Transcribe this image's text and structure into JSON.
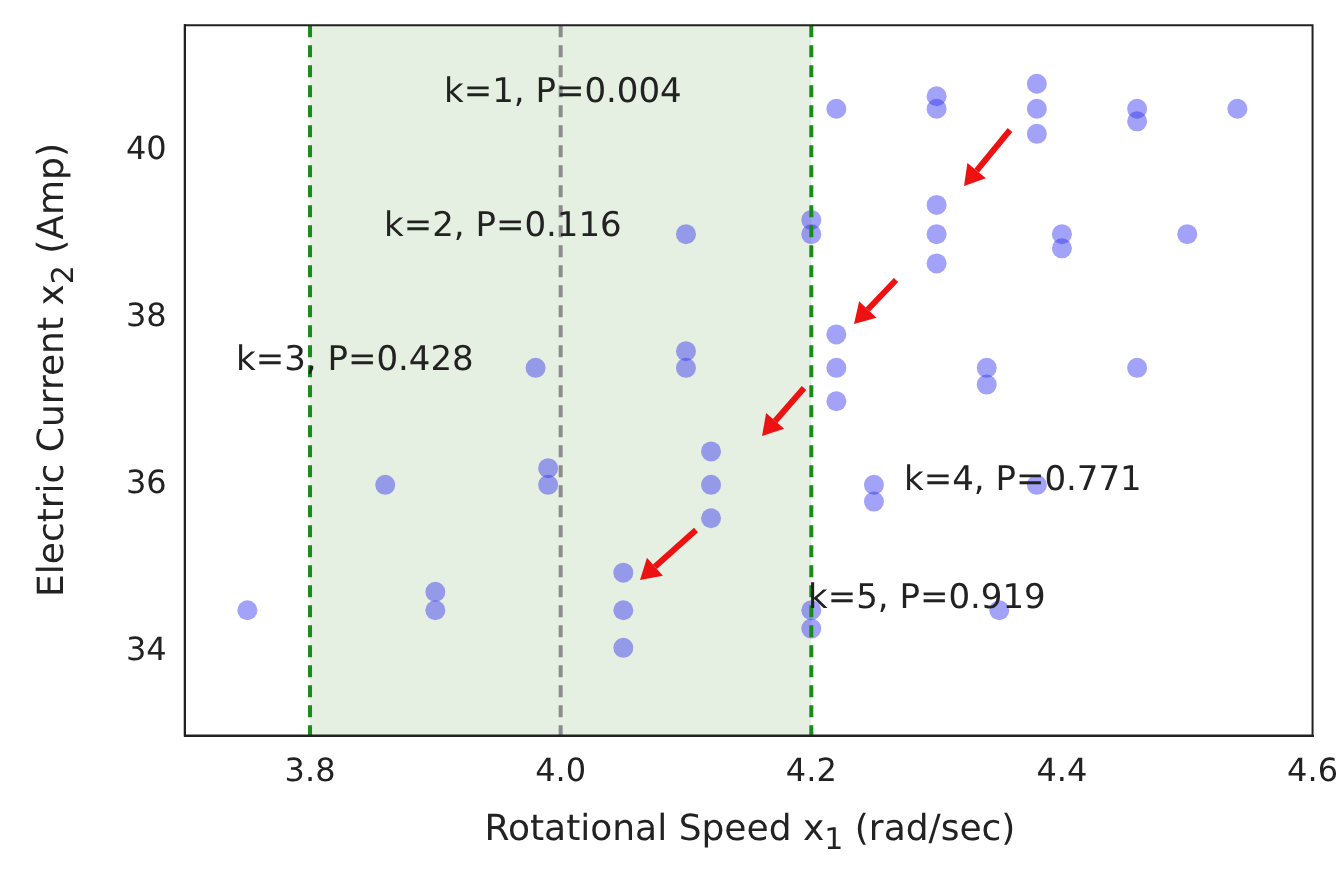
{
  "chart_data": {
    "type": "scatter",
    "xlabel": "Rotational Speed x$_{1}$ (rad/sec)",
    "ylabel": "Electric Current x$_{2}$ (Amp)",
    "series": [
      {
        "color": "#3030f0",
        "x": [
          4.38,
          4.3,
          4.46,
          4.22,
          4.54,
          4.38,
          4.38,
          4.3,
          4.46,
          4.3,
          4.2,
          4.4,
          4.1,
          4.5,
          4.3,
          4.3,
          4.2,
          4.4,
          4.22,
          4.1,
          4.34,
          3.98,
          4.46,
          4.22,
          4.22,
          4.1,
          4.34,
          4.12,
          3.99,
          4.25,
          3.86,
          4.38,
          4.12,
          4.12,
          3.99,
          4.25,
          4.05,
          3.9,
          4.2,
          3.75,
          4.35,
          4.05,
          4.05,
          3.9,
          4.2
        ],
        "values": [
          40.5,
          40.5,
          40.5,
          40.5,
          40.5,
          40.8,
          40.2,
          40.65,
          40.35,
          39.0,
          39.0,
          39.0,
          39.0,
          39.0,
          39.35,
          38.65,
          39.17,
          38.83,
          37.4,
          37.4,
          37.4,
          37.4,
          37.4,
          37.8,
          37.0,
          37.6,
          37.2,
          36.0,
          36.0,
          36.0,
          36.0,
          36.0,
          36.4,
          35.6,
          36.2,
          35.8,
          34.5,
          34.5,
          34.5,
          34.5,
          34.5,
          34.95,
          34.05,
          34.72,
          34.28
        ]
      }
    ],
    "xlim": [
      3.7,
      4.6
    ],
    "xticks": [
      3.8,
      {
        "value": 4,
        "label": "4.0"
      },
      4.2,
      4.4,
      4.6
    ],
    "ylim": [
      33,
      41.5
    ],
    "yticks": [
      34,
      36,
      38,
      40
    ],
    "bands": [
      {
        "axis": "x",
        "from": 3.8,
        "to": 4.2,
        "color": "#e6f0e2"
      }
    ],
    "ref_lines": [
      {
        "axis": "x",
        "value": 3.8,
        "color": "#1a8a1a",
        "line_style": "dashed"
      },
      {
        "axis": "x",
        "value": 4.2,
        "color": "#1a8a1a",
        "line_style": "dashed"
      },
      {
        "axis": "x",
        "value": 4.0,
        "color": "#8c8c8c",
        "line_style": "dashed"
      }
    ],
    "annotations": [
      "k=1, P=0.004",
      "k=2, P=0.116",
      "k=3, P=0.428",
      "k=4, P=0.771",
      "k=5, P=0.919"
    ],
    "grid": false,
    "legend": false,
    "marker": "circle"
  }
}
